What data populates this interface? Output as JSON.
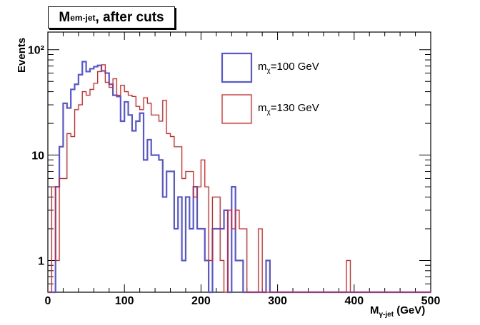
{
  "chart_data": {
    "type": "bar",
    "style": "step-histogram",
    "title": "M_em-jet, after cuts",
    "title_main": "M",
    "title_sub": "em-jet",
    "title_rest": ", after cuts",
    "xlabel": "M_γ-jet (GeV)",
    "xlabel_main": "M",
    "xlabel_sub": "γ-jet",
    "xlabel_rest": " (GeV)",
    "ylabel": "Events",
    "xlim": [
      0,
      500
    ],
    "ylim": [
      0.5,
      147
    ],
    "yscale": "log",
    "grid": false,
    "bin_width": 5,
    "x_tick_labels": [
      "0",
      "100",
      "200",
      "300",
      "400",
      "500"
    ],
    "x_tick_values": [
      0,
      100,
      200,
      300,
      400,
      500
    ],
    "y_tick_labels": [
      "1",
      "10",
      "10²"
    ],
    "y_tick_values": [
      1,
      10,
      100
    ],
    "legend_placement": "top-center",
    "series": [
      {
        "name": "mχ=100 GeV",
        "label_main": "m",
        "label_sub": "χ",
        "label_rest": "=100 GeV",
        "color": "#5555dd",
        "bin_low_edges_start": 0,
        "values": [
          0,
          0,
          5,
          12,
          31,
          28,
          42,
          47,
          58,
          77,
          62,
          66,
          69,
          71,
          63,
          60,
          47,
          37,
          36,
          21,
          32,
          24,
          17,
          21,
          25,
          9,
          14,
          10,
          10,
          9,
          4,
          7,
          7,
          2,
          4,
          1,
          4,
          2,
          5,
          2,
          2,
          1,
          0,
          2,
          2,
          2,
          3,
          0,
          5,
          1,
          1,
          0,
          0,
          0,
          0,
          0,
          0,
          1,
          0,
          0,
          0,
          0,
          0,
          0,
          0,
          0,
          0,
          0,
          0,
          0,
          0,
          0,
          0,
          0,
          0,
          0,
          0,
          0,
          0,
          0,
          0,
          0,
          0,
          0,
          0,
          0,
          0,
          0,
          0,
          0,
          0,
          0,
          0,
          0,
          0,
          0,
          0,
          0,
          0,
          0
        ]
      },
      {
        "name": "mχ=130 GeV",
        "label_main": "m",
        "label_sub": "χ",
        "label_rest": "=130 GeV",
        "color": "#dd2222",
        "bin_low_edges_start": 0,
        "values": [
          0,
          5,
          1,
          6,
          6,
          16,
          15,
          27,
          30,
          40,
          37,
          42,
          48,
          62,
          72,
          49,
          44,
          53,
          37,
          46,
          40,
          37,
          36,
          29,
          27,
          35,
          31,
          24,
          24,
          21,
          33,
          16,
          15,
          12,
          12,
          6,
          7,
          7,
          4,
          5,
          9,
          5,
          1,
          4,
          4,
          1,
          0,
          3,
          2,
          3,
          2,
          2,
          0,
          0,
          0,
          2,
          0,
          0,
          0,
          0,
          0,
          0,
          0,
          0,
          0,
          0,
          0,
          0,
          0,
          0,
          0,
          0,
          0,
          0,
          0,
          0,
          0,
          0,
          1,
          0,
          0,
          0,
          0,
          0,
          0,
          0,
          0,
          0,
          0,
          0,
          0,
          0,
          0,
          0,
          0,
          0,
          0,
          0,
          0,
          0
        ]
      }
    ]
  }
}
